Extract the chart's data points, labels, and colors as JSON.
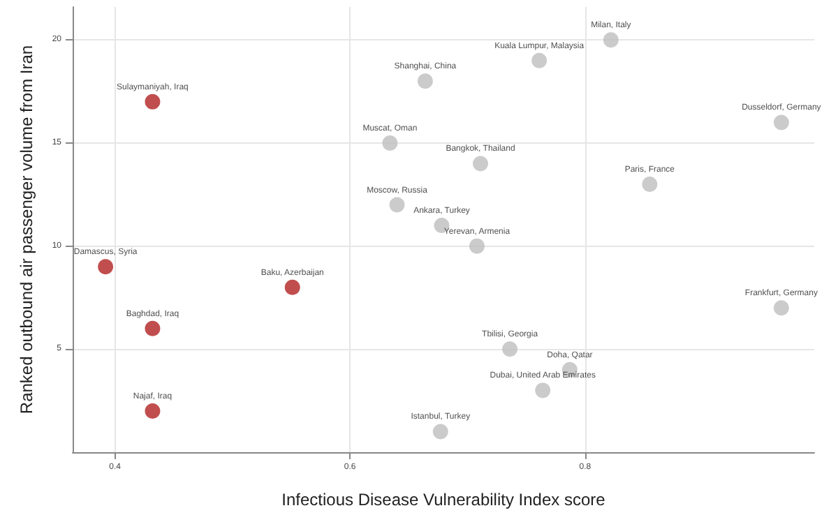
{
  "chart_data": {
    "type": "scatter",
    "xlabel": "Infectious Disease Vulnerability Index score",
    "ylabel": "Ranked outbound air passenger volume from Iran",
    "series": [
      {
        "color": "#b22222",
        "x": [
          0.432,
          0.392,
          0.551,
          0.432,
          0.432
        ],
        "values": [
          17,
          9,
          8,
          6,
          2
        ]
      },
      {
        "color": "#bebebe",
        "x": [
          0.664,
          0.634,
          0.64,
          0.678,
          0.708,
          0.711,
          0.761,
          0.822,
          0.967,
          0.855,
          0.677,
          0.967,
          0.736,
          0.787,
          0.764
        ],
        "values": [
          18,
          15,
          12,
          11,
          10,
          14,
          19,
          20,
          16,
          13,
          1,
          7,
          5,
          4,
          3
        ]
      }
    ],
    "annotations": [
      {
        "text": "Sulaymaniyah, Iraq",
        "x": 0.432,
        "y": 17
      },
      {
        "text": "Damascus, Syria",
        "x": 0.392,
        "y": 9
      },
      {
        "text": "Baku, Azerbaijan",
        "x": 0.551,
        "y": 8
      },
      {
        "text": "Baghdad, Iraq",
        "x": 0.432,
        "y": 6
      },
      {
        "text": "Najaf, Iraq",
        "x": 0.432,
        "y": 2
      },
      {
        "text": "Shanghai, China",
        "x": 0.664,
        "y": 18
      },
      {
        "text": "Muscat, Oman",
        "x": 0.634,
        "y": 15
      },
      {
        "text": "Moscow, Russia",
        "x": 0.64,
        "y": 12
      },
      {
        "text": "Ankara, Turkey",
        "x": 0.678,
        "y": 11
      },
      {
        "text": "Yerevan, Armenia",
        "x": 0.708,
        "y": 10
      },
      {
        "text": "Bangkok, Thailand",
        "x": 0.711,
        "y": 14
      },
      {
        "text": "Kuala Lumpur, Malaysia",
        "x": 0.761,
        "y": 19
      },
      {
        "text": "Milan, Italy",
        "x": 0.822,
        "y": 20
      },
      {
        "text": "Dusseldorf, Germany",
        "x": 0.967,
        "y": 16
      },
      {
        "text": "Paris, France",
        "x": 0.855,
        "y": 13
      },
      {
        "text": "Istanbul, Turkey",
        "x": 0.677,
        "y": 1
      },
      {
        "text": "Frankfurt, Germany",
        "x": 0.967,
        "y": 7
      },
      {
        "text": "Tbilisi, Georgia",
        "x": 0.736,
        "y": 5
      },
      {
        "text": "Doha, Qatar",
        "x": 0.787,
        "y": 4
      },
      {
        "text": "Dubai, United Arab Emirates",
        "x": 0.764,
        "y": 3
      }
    ],
    "xlim": [
      0.364,
      0.995
    ],
    "xticks": [
      0.4,
      0.6,
      0.8
    ],
    "ylim": [
      0,
      21.6
    ],
    "yticks": [
      5,
      10,
      15,
      20
    ],
    "grid": true,
    "marker": "circle"
  }
}
